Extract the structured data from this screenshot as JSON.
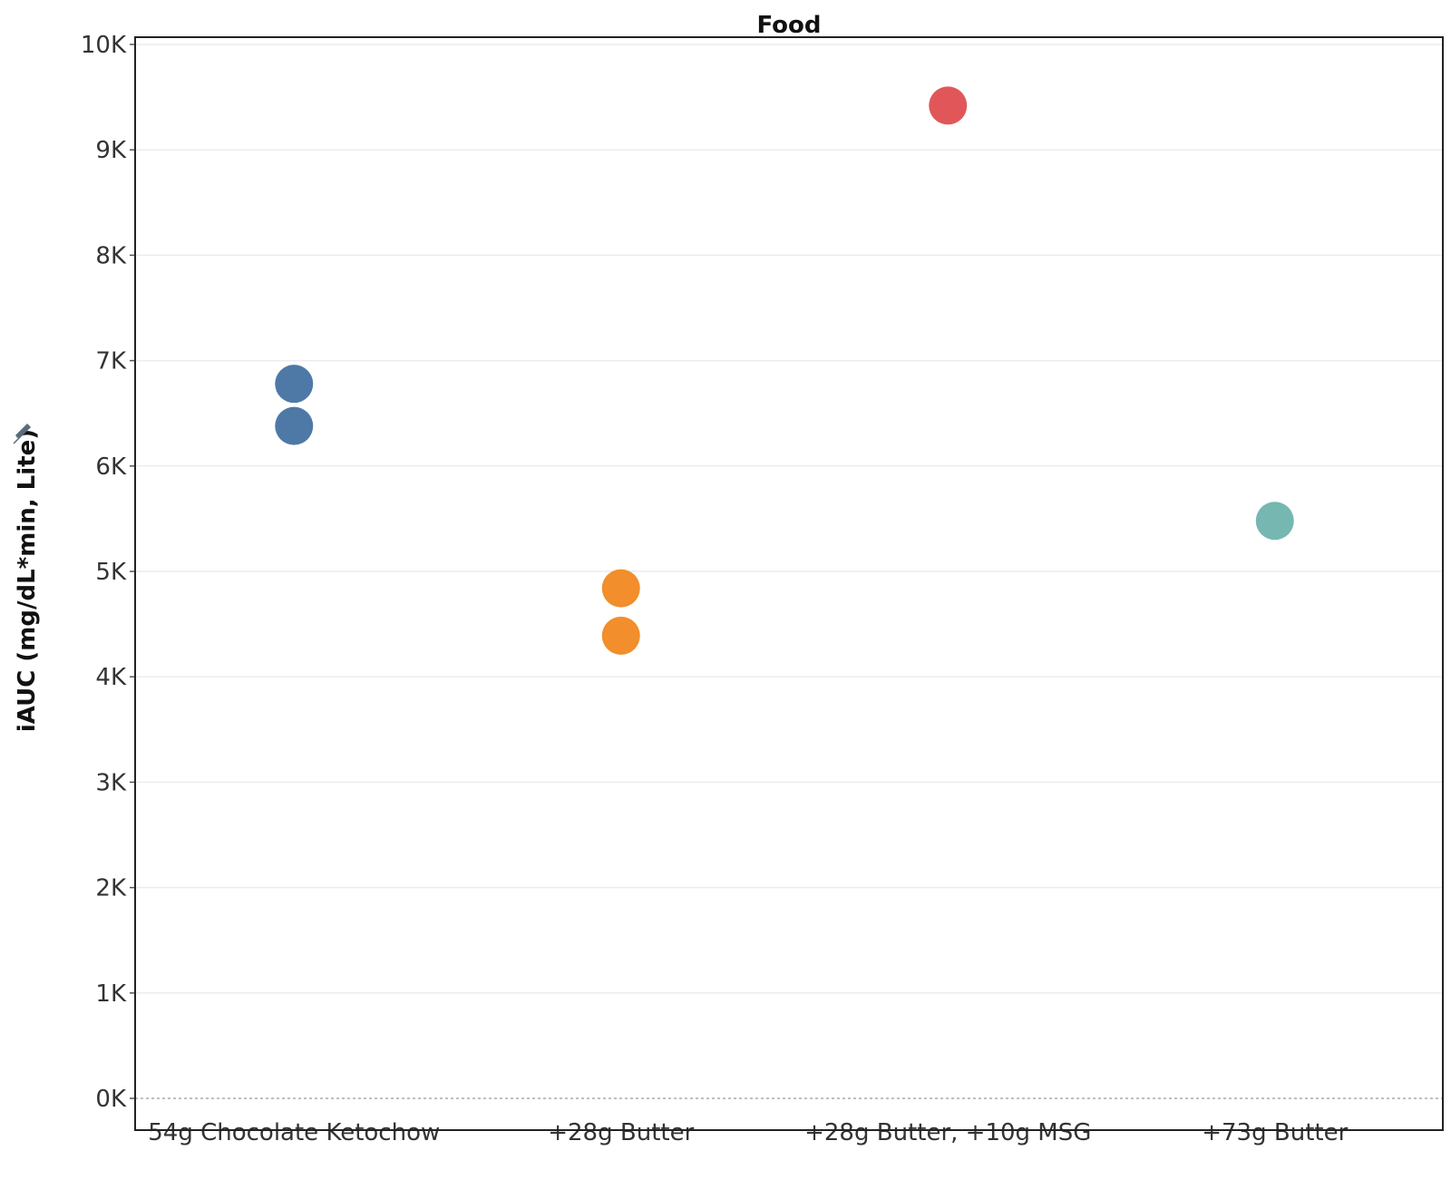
{
  "header": {
    "title": "Food"
  },
  "axis": {
    "y_title": "iAUC (mg/dL*min, Lite)",
    "pin_icon": "pin-icon"
  },
  "chart_data": {
    "type": "scatter",
    "title": "Food",
    "xlabel": "",
    "ylabel": "iAUC (mg/dL*min, Lite)",
    "categories": [
      "54g Chocolate Ketochow",
      "+28g Butter",
      "+28g Butter, +10g MSG",
      "+73g Butter"
    ],
    "ylim": [
      0,
      10000
    ],
    "y_ticks": [
      0,
      1000,
      2000,
      3000,
      4000,
      5000,
      6000,
      7000,
      8000,
      9000,
      10000
    ],
    "y_tick_labels": [
      "0K",
      "1K",
      "2K",
      "3K",
      "4K",
      "5K",
      "6K",
      "7K",
      "8K",
      "9K",
      "10K"
    ],
    "grid": true,
    "legend": "none",
    "series": [
      {
        "category": "54g Chocolate Ketochow",
        "color": "#4e79a7",
        "values": [
          6780,
          6380
        ]
      },
      {
        "category": "+28g Butter",
        "color": "#f28e2b",
        "values": [
          4840,
          4390
        ]
      },
      {
        "category": "+28g Butter, +10g MSG",
        "color": "#e15759",
        "values": [
          9420
        ]
      },
      {
        "category": "+73g Butter",
        "color": "#76b7b2",
        "values": [
          5480
        ]
      }
    ]
  }
}
